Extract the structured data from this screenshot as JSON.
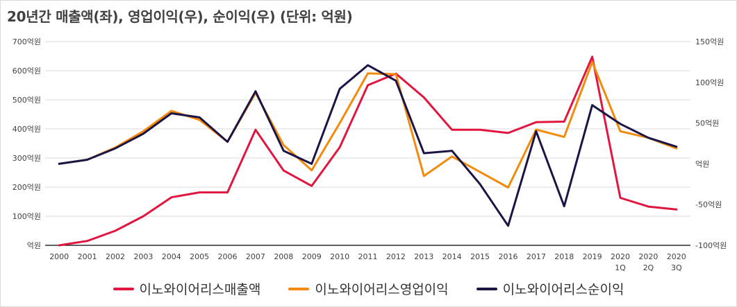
{
  "chart_data": {
    "type": "line",
    "title": "20년간 매출액(좌), 영업이익(우), 순이익(우) (단위: 억원)",
    "categories": [
      "2000",
      "2001",
      "2002",
      "2003",
      "2004",
      "2005",
      "2006",
      "2007",
      "2008",
      "2009",
      "2010",
      "2011",
      "2012",
      "2013",
      "2014",
      "2015",
      "2016",
      "2017",
      "2018",
      "2019",
      "2020 1Q",
      "2020 2Q",
      "2020 3Q"
    ],
    "left_axis": {
      "ylim": [
        0,
        700
      ],
      "ticks": [
        0,
        100,
        200,
        300,
        400,
        500,
        600,
        700
      ],
      "tick_labels": [
        "억원",
        "100억원",
        "200억원",
        "300억원",
        "400억원",
        "500억원",
        "600억원",
        "700억원"
      ]
    },
    "right_axis": {
      "ylim": [
        -100,
        150
      ],
      "ticks": [
        -100,
        -50,
        0,
        50,
        100,
        150
      ],
      "tick_labels": [
        "-100억원",
        "-50억원",
        "억원",
        "50억원",
        "100억원",
        "150억원"
      ]
    },
    "series": [
      {
        "name": "이노와이어리스매출액",
        "axis": "left",
        "color": "#e0163f",
        "values": [
          0,
          15,
          50,
          100,
          165,
          182,
          182,
          397,
          257,
          204,
          337,
          550,
          590,
          508,
          397,
          397,
          386,
          423,
          425,
          648,
          163,
          133,
          123
        ]
      },
      {
        "name": "이노와이어리스영업이익",
        "axis": "right",
        "color": "#f28a0c",
        "values": [
          0,
          5,
          20,
          40,
          65,
          54,
          27,
          87,
          23,
          -8,
          50,
          111,
          110,
          -15,
          9,
          -10,
          -29,
          42,
          33,
          125,
          40,
          32,
          19
        ]
      },
      {
        "name": "이노와이어리스순이익",
        "axis": "right",
        "color": "#1b1446",
        "values": [
          0,
          5,
          19,
          37,
          62,
          57,
          27,
          89,
          16,
          0,
          92,
          121,
          102,
          13,
          16,
          -25,
          -76,
          40,
          -52,
          72,
          49,
          32,
          21
        ]
      }
    ],
    "grid": true,
    "legend_position": "bottom"
  }
}
